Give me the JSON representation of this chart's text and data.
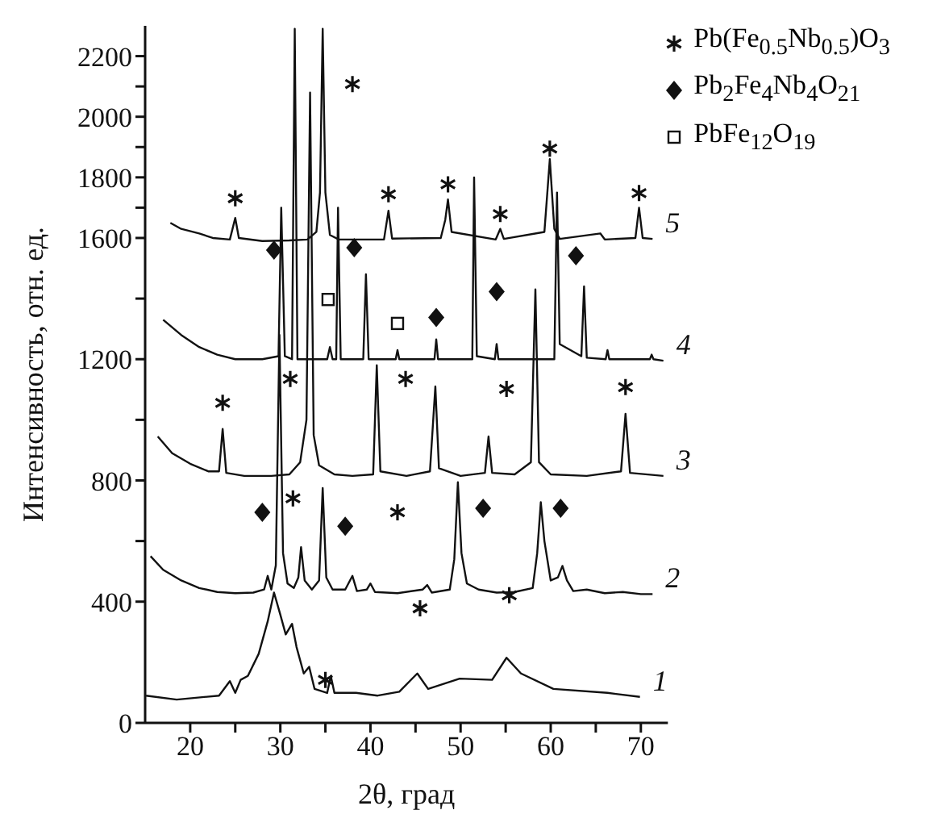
{
  "chart_data": {
    "type": "line",
    "xlabel": "2θ, град",
    "ylabel": "Интенсивность, отн. ед.",
    "xlim": [
      15,
      73
    ],
    "ylim": [
      0,
      2300
    ],
    "xticks": [
      20,
      {
        "value": 25,
        "label": null
      },
      30,
      {
        "value": 35,
        "label": null
      },
      40,
      {
        "value": 45,
        "label": null
      },
      50,
      {
        "value": 55,
        "label": null
      },
      60,
      {
        "value": 65,
        "label": null
      },
      70
    ],
    "yticks": [
      0,
      400,
      {
        "value": 600,
        "label": null
      },
      800,
      {
        "value": 1000,
        "label": null
      },
      1200,
      {
        "value": 1400,
        "label": null
      },
      1600,
      {
        "value": 1700,
        "label": null
      },
      1800,
      {
        "value": 1900,
        "label": null
      },
      2000,
      {
        "value": 2100,
        "label": null
      },
      2200
    ],
    "grid": false,
    "legend": "top right",
    "marker": "none",
    "line_style": "solid",
    "series": [
      {
        "name": "1",
        "color": "#111111",
        "x": [
          15.1,
          18.5,
          23.2,
          24.4,
          25.0,
          25.6,
          26.4,
          27.6,
          28.6,
          29.3,
          30.0,
          30.6,
          31.3,
          31.8,
          32.6,
          33.2,
          33.8,
          35.2,
          35.6,
          36.0,
          38.4,
          40.8,
          43.2,
          45.2,
          46.4,
          49.9,
          53.5,
          55.1,
          56.7,
          60.3,
          66.3,
          69.9
        ],
        "values": [
          90,
          77,
          90,
          138,
          99,
          142,
          155,
          228,
          335,
          430,
          357,
          292,
          327,
          250,
          163,
          185,
          112,
          99,
          155,
          99,
          99,
          90,
          103,
          163,
          112,
          146,
          142,
          215,
          163,
          112,
          99,
          86
        ]
      },
      {
        "name": "2",
        "color": "#111111",
        "x": [
          15.6,
          17,
          19,
          21,
          23,
          25,
          27,
          28.2,
          28.6,
          29.0,
          29.5,
          29.9,
          30.3,
          30.8,
          31.5,
          32.0,
          32.3,
          32.7,
          33.5,
          34.3,
          34.7,
          35.1,
          35.8,
          37.2,
          38.0,
          38.5,
          39.6,
          40.0,
          40.5,
          43,
          45.8,
          46.3,
          46.8,
          48.8,
          49.3,
          49.7,
          50.1,
          50.7,
          52,
          54,
          56,
          58,
          58.5,
          58.9,
          59.3,
          60.0,
          60.8,
          61.3,
          61.8,
          62.5,
          64,
          66,
          68,
          70,
          71.3
        ],
        "values": [
          550,
          505,
          470,
          445,
          432,
          428,
          430,
          440,
          485,
          440,
          520,
          1280,
          560,
          460,
          445,
          480,
          580,
          470,
          440,
          470,
          775,
          480,
          440,
          440,
          485,
          435,
          440,
          460,
          432,
          428,
          440,
          455,
          430,
          440,
          540,
          794,
          560,
          460,
          440,
          430,
          432,
          445,
          560,
          728,
          600,
          470,
          480,
          518,
          470,
          435,
          440,
          428,
          432,
          425,
          425
        ]
      },
      {
        "name": "3",
        "color": "#111111",
        "x": [
          16.4,
          18,
          20,
          22,
          23.2,
          23.6,
          24.0,
          26,
          29,
          31,
          32.2,
          32.9,
          33.3,
          33.7,
          34.3,
          36,
          38,
          40.3,
          40.7,
          41.1,
          44,
          46.6,
          47.2,
          47.6,
          50,
          52.7,
          53.1,
          53.5,
          56,
          57.8,
          58.3,
          58.7,
          60,
          64,
          67.8,
          68.3,
          68.8,
          72.5
        ],
        "values": [
          945,
          890,
          855,
          830,
          830,
          970,
          825,
          815,
          815,
          820,
          860,
          1000,
          2080,
          950,
          850,
          820,
          815,
          820,
          1180,
          830,
          815,
          830,
          1110,
          840,
          815,
          825,
          945,
          825,
          820,
          860,
          1430,
          860,
          820,
          815,
          830,
          1020,
          825,
          815
        ]
      },
      {
        "name": "4",
        "color": "#111111",
        "x": [
          17.0,
          19,
          21,
          23,
          25,
          28,
          29.8,
          30.1,
          30.5,
          31.3,
          31.6,
          31.9,
          33.1,
          35.2,
          35.5,
          35.8,
          36.2,
          36.4,
          36.7,
          39.2,
          39.5,
          39.8,
          42.8,
          43.0,
          43.2,
          47.1,
          47.3,
          47.5,
          51.3,
          51.5,
          51.8,
          53.8,
          54.0,
          54.2,
          60.4,
          60.7,
          61.0,
          63.4,
          63.7,
          64.0,
          66.1,
          66.3,
          66.5,
          71.0,
          71.2,
          71.4,
          72.5
        ],
        "values": [
          1330,
          1280,
          1240,
          1215,
          1200,
          1200,
          1210,
          1700,
          1210,
          1200,
          2290,
          1200,
          1200,
          1200,
          1240,
          1200,
          1200,
          1700,
          1200,
          1200,
          1480,
          1200,
          1200,
          1230,
          1200,
          1200,
          1265,
          1200,
          1200,
          1800,
          1210,
          1200,
          1250,
          1200,
          1200,
          1750,
          1250,
          1210,
          1440,
          1205,
          1200,
          1230,
          1200,
          1200,
          1215,
          1200,
          1195
        ]
      },
      {
        "name": "5",
        "color": "#111111",
        "x": [
          17.8,
          19,
          21,
          22.5,
          24.4,
          25.0,
          25.4,
          28,
          31,
          33,
          34.0,
          34.4,
          34.7,
          35.0,
          35.5,
          36.5,
          41.5,
          42.0,
          42.4,
          47.8,
          48.3,
          48.6,
          49.0,
          53.9,
          54.4,
          54.8,
          59.3,
          59.9,
          60.4,
          61,
          65.5,
          66,
          69.4,
          69.8,
          70.2,
          71.3
        ],
        "values": [
          1650,
          1630,
          1615,
          1600,
          1595,
          1666,
          1600,
          1590,
          1592,
          1595,
          1620,
          1750,
          2290,
          1750,
          1610,
          1595,
          1595,
          1690,
          1598,
          1600,
          1660,
          1727,
          1620,
          1595,
          1630,
          1597,
          1620,
          1860,
          1630,
          1597,
          1615,
          1595,
          1600,
          1700,
          1600,
          1597
        ]
      },
      {
        "name": "Pb(Fe$_{0.5}$Nb$_{0.5}$)O$_{3}$",
        "type": "scatter",
        "marker": "cross",
        "color": "#111111",
        "x": [
          25.0,
          38.0,
          42.0,
          48.6,
          54.4,
          59.9,
          69.8,
          23.6,
          31.1,
          43.9,
          55.1,
          68.3,
          31.4,
          43.0,
          35.0,
          45.5,
          55.4
        ],
        "values": [
          1731,
          2108,
          1744,
          1777,
          1679,
          1895,
          1748,
          1056,
          1135,
          1135,
          1102,
          1108,
          741,
          695,
          142,
          378,
          421
        ]
      },
      {
        "name": "Pb$_{2}$Fe$_{4}$Nb$_{4}$O$_{21}$",
        "type": "scatter",
        "marker": "diamond",
        "color": "#111111",
        "x": [
          29.3,
          38.2,
          47.3,
          54.0,
          62.8,
          28.0,
          37.2,
          52.5,
          61.1
        ],
        "values": [
          1560,
          1568,
          1338,
          1423,
          1541,
          695,
          649,
          708,
          708
        ]
      },
      {
        "name": "PbFe$_{12}$O$_{19}$",
        "type": "scatter",
        "marker": "square",
        "color": "#111111",
        "x": [
          35.3,
          43.0
        ],
        "values": [
          1397,
          1318
        ]
      }
    ]
  }
}
